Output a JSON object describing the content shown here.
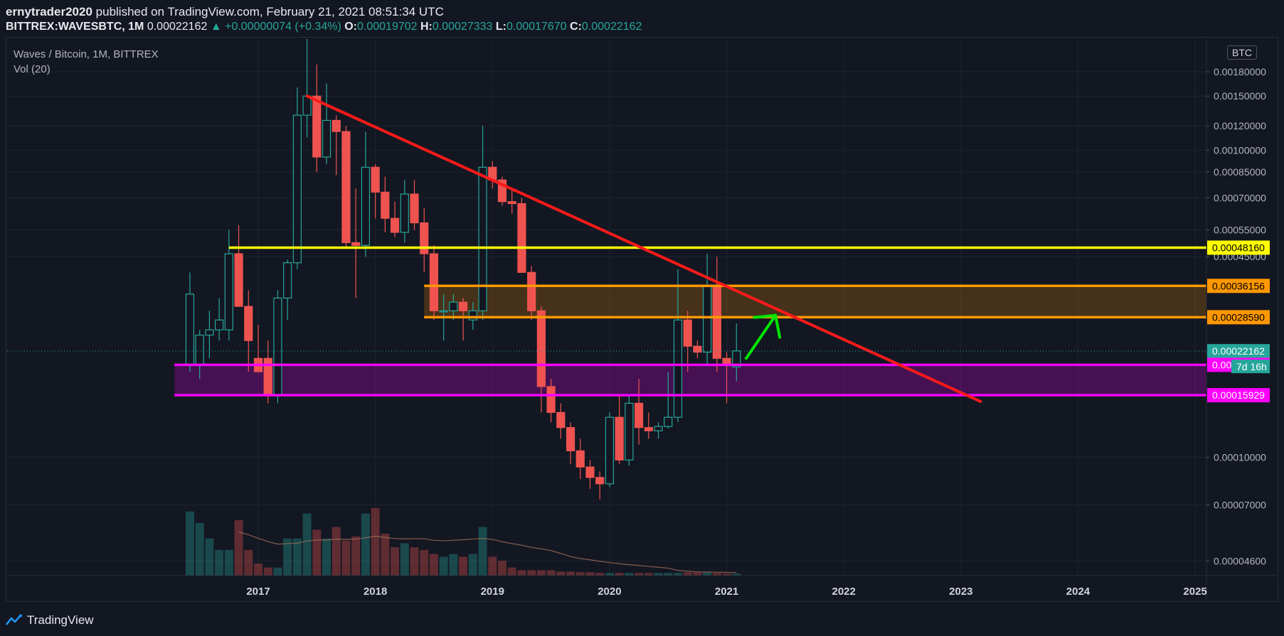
{
  "header": {
    "author": "ernytrader2020",
    "published_text": "published on TradingView.com, February 21, 2021 08:51:34 UTC",
    "symbol": "BITTREX:WAVESBTC, 1M",
    "last": "0.00022162",
    "change": "▲ +0.00000074 (+0.34%)",
    "o_label": "O:",
    "o_value": "0.00019702",
    "h_label": "H:",
    "h_value": "0.00027333",
    "l_label": "L:",
    "l_value": "0.00017670",
    "c_label": "C:",
    "c_value": "0.00022162"
  },
  "legend": {
    "title": "Waves / Bitcoin, 1M, BITTREX",
    "vol": "Vol (20)"
  },
  "currency_tag": "BTC",
  "footer": {
    "brand": "TradingView"
  },
  "colors": {
    "background": "#131722",
    "up": "#26a69a",
    "down": "#ef5350",
    "resistance_yellow": "#ffff00",
    "zone_orange": "#ff9800",
    "zone_magenta": "#ff00ff",
    "trendline": "#ff1a1a",
    "arrow": "#00e600"
  },
  "chart_data": {
    "type": "candlestick",
    "title": "Waves / Bitcoin, 1M, BITTREX",
    "y_scale": "log",
    "ylim": [
      4.12e-05,
      0.0023
    ],
    "x_tick_labels": [
      "2017",
      "2018",
      "2019",
      "2020",
      "2021",
      "2022",
      "2023",
      "2024",
      "2025"
    ],
    "y_tick_labels": [
      "0.00180000",
      "0.00150000",
      "0.00120000",
      "0.00100000",
      "0.00085000",
      "0.00070000",
      "0.00055000",
      "0.00045000",
      "0.00010000",
      "0.00007000",
      "0.00004600"
    ],
    "y_tick_values": [
      0.0018,
      0.0015,
      0.0012,
      0.001,
      0.00085,
      0.0007,
      0.00055,
      0.00045,
      0.0001,
      7e-05,
      4.6e-05
    ],
    "price_labels": [
      {
        "text": "0.00048160",
        "value": 0.0004816,
        "color": "#ffff00",
        "text_color": "#000000"
      },
      {
        "text": "0.00036156",
        "value": 0.00036156,
        "color": "#ff9800",
        "text_color": "#000000"
      },
      {
        "text": "0.00028590",
        "value": 0.0002859,
        "color": "#ff9800",
        "text_color": "#000000"
      },
      {
        "text": "0.00022162",
        "value": 0.00022162,
        "color": "#26a69a",
        "text_color": "#ffffff"
      },
      {
        "text": "0.00020001",
        "value": 0.00020001,
        "color": "#ff00ff",
        "text_color": "#ffffff"
      },
      {
        "text": "0.00015929",
        "value": 0.00015929,
        "color": "#ff00ff",
        "text_color": "#ffffff"
      }
    ],
    "countdown": "7d 16h",
    "candles": [
      {
        "date": "2016-06",
        "o": 0.0002,
        "h": 0.0004,
        "l": 0.00019,
        "c": 0.00034
      },
      {
        "date": "2016-07",
        "o": 0.0002,
        "h": 0.00026,
        "l": 0.00018,
        "c": 0.00025
      },
      {
        "date": "2016-08",
        "o": 0.00025,
        "h": 0.0003,
        "l": 0.00021,
        "c": 0.00026
      },
      {
        "date": "2016-09",
        "o": 0.00026,
        "h": 0.00033,
        "l": 0.00024,
        "c": 0.00028
      },
      {
        "date": "2016-10",
        "o": 0.00026,
        "h": 0.00055,
        "l": 0.00024,
        "c": 0.00046
      },
      {
        "date": "2016-11",
        "o": 0.00046,
        "h": 0.00057,
        "l": 0.00031,
        "c": 0.00031
      },
      {
        "date": "2016-12",
        "o": 0.00031,
        "h": 0.00035,
        "l": 0.00019,
        "c": 0.00024
      },
      {
        "date": "2017-01",
        "o": 0.00021,
        "h": 0.00027,
        "l": 0.00019,
        "c": 0.00019
      },
      {
        "date": "2017-02",
        "o": 0.00021,
        "h": 0.00024,
        "l": 0.00015,
        "c": 0.00016
      },
      {
        "date": "2017-03",
        "o": 0.00016,
        "h": 0.00035,
        "l": 0.00015,
        "c": 0.00033
      },
      {
        "date": "2017-04",
        "o": 0.00033,
        "h": 0.00044,
        "l": 0.00028,
        "c": 0.00043
      },
      {
        "date": "2017-05",
        "o": 0.00043,
        "h": 0.0016,
        "l": 0.00041,
        "c": 0.0013
      },
      {
        "date": "2017-06",
        "o": 0.0013,
        "h": 0.0023,
        "l": 0.0011,
        "c": 0.0015
      },
      {
        "date": "2017-07",
        "o": 0.0015,
        "h": 0.0019,
        "l": 0.00085,
        "c": 0.00095
      },
      {
        "date": "2017-08",
        "o": 0.00095,
        "h": 0.00165,
        "l": 0.0009,
        "c": 0.00125
      },
      {
        "date": "2017-09",
        "o": 0.00125,
        "h": 0.0013,
        "l": 0.00083,
        "c": 0.00115
      },
      {
        "date": "2017-10",
        "o": 0.00115,
        "h": 0.0012,
        "l": 0.00048,
        "c": 0.0005
      },
      {
        "date": "2017-11",
        "o": 0.0005,
        "h": 0.00075,
        "l": 0.00033,
        "c": 0.00049
      },
      {
        "date": "2017-12",
        "o": 0.00049,
        "h": 0.00115,
        "l": 0.00045,
        "c": 0.00088
      },
      {
        "date": "2018-01",
        "o": 0.00088,
        "h": 0.0009,
        "l": 0.0006,
        "c": 0.00073
      },
      {
        "date": "2018-02",
        "o": 0.00073,
        "h": 0.00082,
        "l": 0.00054,
        "c": 0.0006
      },
      {
        "date": "2018-03",
        "o": 0.0006,
        "h": 0.00068,
        "l": 0.00052,
        "c": 0.00054
      },
      {
        "date": "2018-04",
        "o": 0.00054,
        "h": 0.0008,
        "l": 0.0005,
        "c": 0.00072
      },
      {
        "date": "2018-05",
        "o": 0.00072,
        "h": 0.0008,
        "l": 0.00055,
        "c": 0.00058
      },
      {
        "date": "2018-06",
        "o": 0.00058,
        "h": 0.00065,
        "l": 0.0004,
        "c": 0.00046
      },
      {
        "date": "2018-07",
        "o": 0.00046,
        "h": 0.00049,
        "l": 0.00028,
        "c": 0.0003
      },
      {
        "date": "2018-08",
        "o": 0.0003,
        "h": 0.00034,
        "l": 0.00024,
        "c": 0.0003
      },
      {
        "date": "2018-09",
        "o": 0.0003,
        "h": 0.00034,
        "l": 0.00028,
        "c": 0.00032
      },
      {
        "date": "2018-10",
        "o": 0.00032,
        "h": 0.00033,
        "l": 0.00024,
        "c": 0.0003
      },
      {
        "date": "2018-11",
        "o": 0.00028,
        "h": 0.00032,
        "l": 0.00026,
        "c": 0.0003
      },
      {
        "date": "2018-12",
        "o": 0.0003,
        "h": 0.0012,
        "l": 0.00028,
        "c": 0.00088
      },
      {
        "date": "2019-01",
        "o": 0.00088,
        "h": 0.00092,
        "l": 0.00075,
        "c": 0.0008
      },
      {
        "date": "2019-02",
        "o": 0.0008,
        "h": 0.00082,
        "l": 0.00066,
        "c": 0.00068
      },
      {
        "date": "2019-03",
        "o": 0.00068,
        "h": 0.00074,
        "l": 0.00062,
        "c": 0.00067
      },
      {
        "date": "2019-04",
        "o": 0.00067,
        "h": 0.0007,
        "l": 0.0004,
        "c": 0.0004
      },
      {
        "date": "2019-05",
        "o": 0.0004,
        "h": 0.00042,
        "l": 0.00028,
        "c": 0.0003
      },
      {
        "date": "2019-06",
        "o": 0.0003,
        "h": 0.00031,
        "l": 0.00014,
        "c": 0.00017
      },
      {
        "date": "2019-07",
        "o": 0.00017,
        "h": 0.00018,
        "l": 0.00013,
        "c": 0.00014
      },
      {
        "date": "2019-08",
        "o": 0.00014,
        "h": 0.00015,
        "l": 0.000115,
        "c": 0.000125
      },
      {
        "date": "2019-09",
        "o": 0.000125,
        "h": 0.00013,
        "l": 9.5e-05,
        "c": 0.000105
      },
      {
        "date": "2019-10",
        "o": 0.000105,
        "h": 0.000115,
        "l": 8.5e-05,
        "c": 9.3e-05
      },
      {
        "date": "2019-11",
        "o": 9.3e-05,
        "h": 9.8e-05,
        "l": 7.9e-05,
        "c": 8.6e-05
      },
      {
        "date": "2019-12",
        "o": 8.6e-05,
        "h": 9e-05,
        "l": 7.3e-05,
        "c": 8.2e-05
      },
      {
        "date": "2020-01",
        "o": 8.2e-05,
        "h": 0.00014,
        "l": 8e-05,
        "c": 0.000135
      },
      {
        "date": "2020-02",
        "o": 0.000135,
        "h": 0.00016,
        "l": 9.5e-05,
        "c": 9.8e-05
      },
      {
        "date": "2020-03",
        "o": 9.8e-05,
        "h": 0.00016,
        "l": 9.4e-05,
        "c": 0.00015
      },
      {
        "date": "2020-04",
        "o": 0.00015,
        "h": 0.00018,
        "l": 0.00011,
        "c": 0.000125
      },
      {
        "date": "2020-05",
        "o": 0.000125,
        "h": 0.00014,
        "l": 0.000115,
        "c": 0.000122
      },
      {
        "date": "2020-06",
        "o": 0.000122,
        "h": 0.00013,
        "l": 0.000115,
        "c": 0.000126
      },
      {
        "date": "2020-07",
        "o": 0.000126,
        "h": 0.00019,
        "l": 0.000124,
        "c": 0.000135
      },
      {
        "date": "2020-08",
        "o": 0.000135,
        "h": 0.00041,
        "l": 0.00013,
        "c": 0.00028
      },
      {
        "date": "2020-09",
        "o": 0.00028,
        "h": 0.0003,
        "l": 0.00019,
        "c": 0.00023
      },
      {
        "date": "2020-10",
        "o": 0.00023,
        "h": 0.00024,
        "l": 0.00021,
        "c": 0.00022
      },
      {
        "date": "2020-11",
        "o": 0.00022,
        "h": 0.00046,
        "l": 0.0002,
        "c": 0.00036
      },
      {
        "date": "2020-12",
        "o": 0.00036,
        "h": 0.00045,
        "l": 0.00019,
        "c": 0.00021
      },
      {
        "date": "2021-01",
        "o": 0.00021,
        "h": 0.00022,
        "l": 0.00015,
        "c": 0.0002
      },
      {
        "date": "2021-02",
        "o": 0.000197,
        "h": 0.000273,
        "l": 0.000177,
        "c": 0.000222
      }
    ],
    "volume_relative": [
      0.95,
      0.78,
      0.55,
      0.38,
      0.38,
      0.82,
      0.38,
      0.18,
      0.12,
      0.12,
      0.55,
      0.55,
      0.92,
      0.68,
      0.55,
      0.72,
      0.52,
      0.58,
      0.92,
      1.0,
      0.62,
      0.42,
      0.48,
      0.42,
      0.38,
      0.32,
      0.28,
      0.32,
      0.28,
      0.32,
      0.72,
      0.28,
      0.22,
      0.12,
      0.08,
      0.08,
      0.08,
      0.08,
      0.06,
      0.06,
      0.05,
      0.05,
      0.04,
      0.04,
      0.04,
      0.04,
      0.04,
      0.04,
      0.04,
      0.04,
      0.04,
      0.05,
      0.05,
      0.05,
      0.04,
      0.03,
      0.03
    ],
    "horizontal_levels": [
      {
        "name": "resistance",
        "value": 0.0004816,
        "color": "#ffff00",
        "from": "2016-10"
      },
      {
        "name": "zone-top",
        "value": 0.00036156,
        "color": "#ff9800",
        "from": "2018-06"
      },
      {
        "name": "zone-bottom",
        "value": 0.0002859,
        "color": "#ff9800",
        "from": "2018-06"
      },
      {
        "name": "support-top",
        "value": 0.00020001,
        "color": "#ff00ff",
        "from": "2016-05"
      },
      {
        "name": "support-bottom",
        "value": 0.00015929,
        "color": "#ff00ff",
        "from": "2016-05"
      }
    ],
    "trendline": {
      "start": {
        "date": "2017-06",
        "value": 0.0015
      },
      "end": {
        "date": "2023-03",
        "value": 0.000152
      },
      "color": "#ff1a1a"
    },
    "annotation_arrow": {
      "start": {
        "date": "2021-03",
        "value": 0.00021
      },
      "end": {
        "date": "2021-06",
        "value": 0.00029
      },
      "color": "#00e600"
    }
  }
}
